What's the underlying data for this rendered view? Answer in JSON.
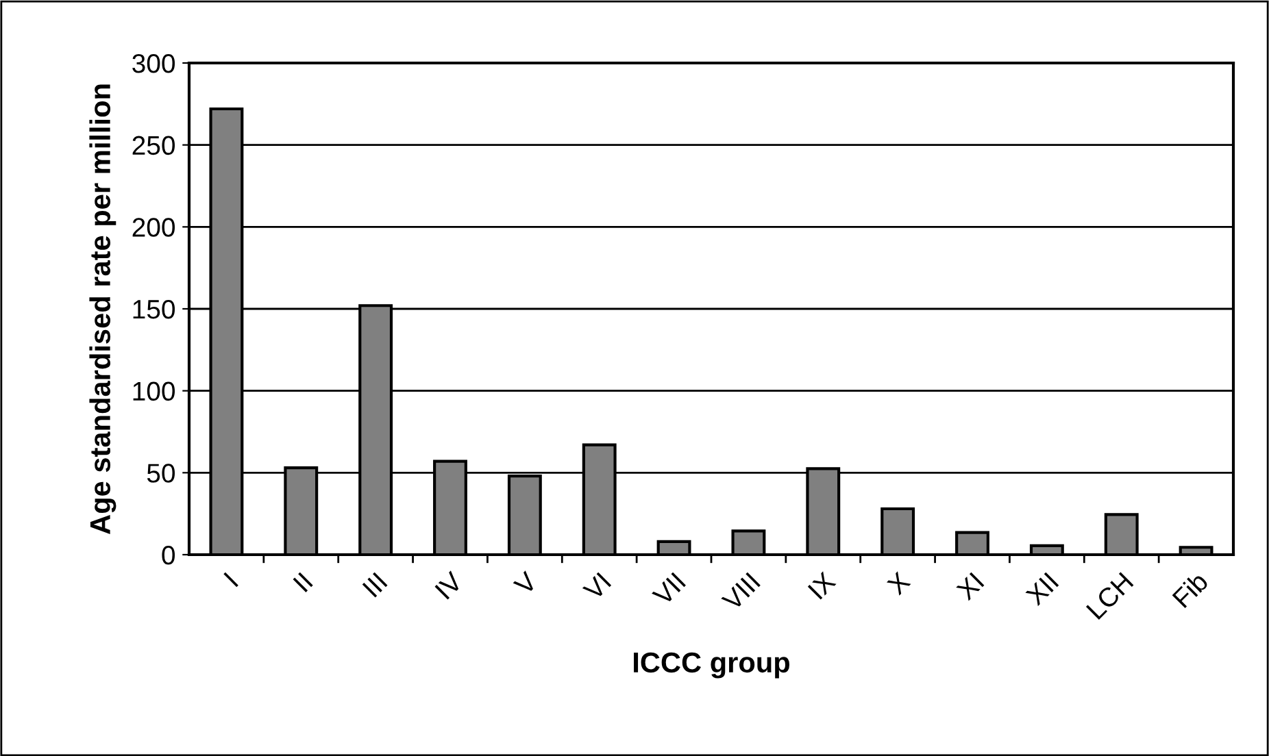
{
  "chart_data": {
    "type": "bar",
    "categories": [
      "I",
      "II",
      "III",
      "IV",
      "V",
      "VI",
      "VII",
      "VIII",
      "IX",
      "X",
      "XI",
      "XII",
      "LCH",
      "Fib"
    ],
    "values": [
      272,
      53,
      152,
      57,
      48,
      67,
      8,
      14.5,
      52.5,
      28,
      13.5,
      5.5,
      24.5,
      4.5
    ],
    "color": "#808080",
    "xlabel": "ICCC group",
    "ylabel": "Age standardised rate per million",
    "ylim": [
      0,
      300
    ],
    "yticks": [
      0,
      50,
      100,
      150,
      200,
      250,
      300
    ],
    "grid": "y"
  }
}
